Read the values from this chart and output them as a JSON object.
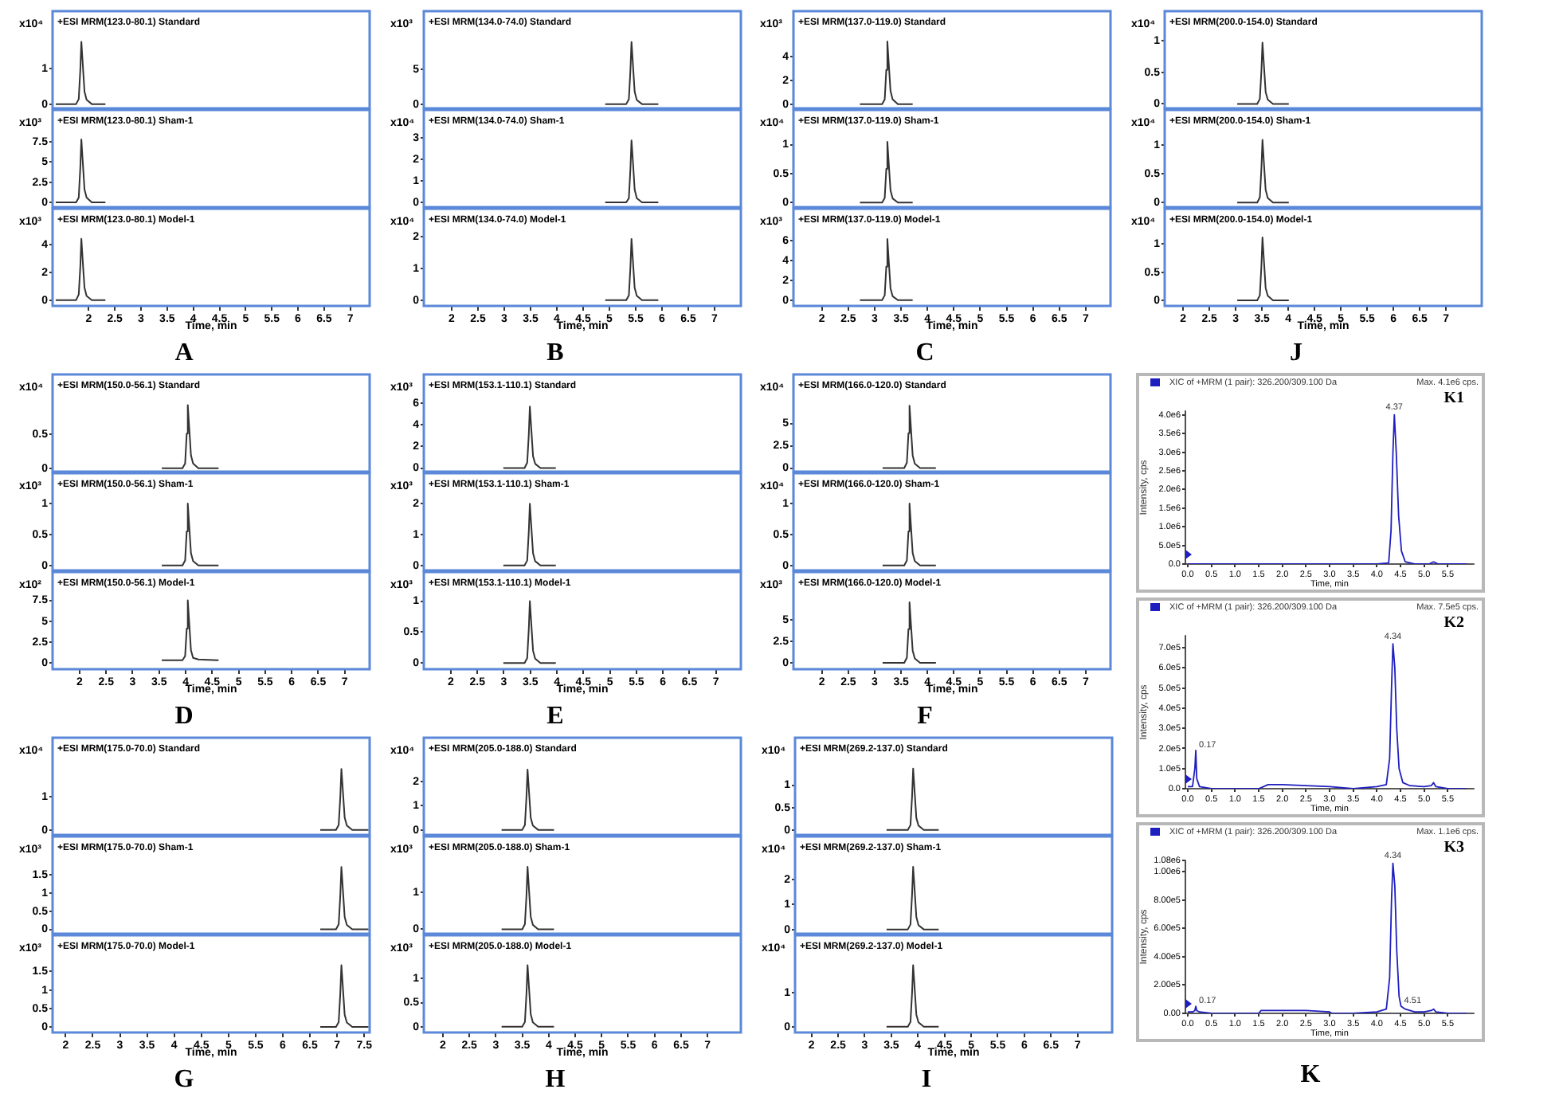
{
  "chart_data": [
    {
      "type": "line",
      "title": "+ESI MRM(123.0-80.1) Standard",
      "ylabel": "x10⁴",
      "x": [
        1.37,
        1.76,
        1.81,
        1.84,
        1.86,
        1.89,
        1.92,
        1.96,
        2.06,
        2.32
      ],
      "values": [
        0,
        0,
        0.14,
        0.96,
        1.75,
        1.05,
        0.35,
        0.12,
        0,
        0
      ],
      "color": "#333333",
      "xlim": [
        1.31,
        7.37
      ],
      "ylim": [
        -0.12,
        2.61
      ],
      "yticks": [
        0,
        1
      ],
      "tick_labels": "y"
    },
    {
      "type": "line",
      "title": "+ESI MRM(123.0-80.1) Sham-1",
      "ylabel": "x10³",
      "x": [
        1.37,
        1.76,
        1.81,
        1.84,
        1.86,
        1.89,
        1.92,
        1.96,
        2.06,
        2.32
      ],
      "values": [
        0,
        0,
        0.6,
        4.3,
        7.8,
        4.7,
        1.6,
        0.6,
        0,
        0
      ],
      "color": "#333333",
      "xlim": [
        1.31,
        7.37
      ],
      "ylim": [
        -0.59,
        11.45
      ],
      "yticks": [
        0,
        2.5,
        5,
        7.5
      ],
      "tick_labels": "y"
    },
    {
      "type": "line",
      "title": "+ESI MRM(123.0-80.1) Model-1",
      "ylabel": "x10³",
      "xlabel": "Time, min",
      "annotations": [
        "A"
      ],
      "x": [
        1.37,
        1.76,
        1.81,
        1.84,
        1.86,
        1.89,
        1.92,
        1.96,
        2.06,
        2.32
      ],
      "values": [
        0,
        0,
        0.4,
        2.4,
        4.4,
        2.6,
        0.9,
        0.3,
        0,
        0
      ],
      "color": "#333333",
      "xlim": [
        1.31,
        7.37
      ],
      "ylim": [
        -0.42,
        6.57
      ],
      "xticks": [
        2,
        2.5,
        3,
        3.5,
        4,
        4.5,
        5,
        5.5,
        6,
        6.5,
        7
      ],
      "yticks": [
        0,
        2,
        4
      ]
    },
    {
      "type": "line",
      "title": "+ESI MRM(134.0-74.0) Standard",
      "ylabel": "x10³",
      "x": [
        4.92,
        5.32,
        5.37,
        5.4,
        5.42,
        5.45,
        5.48,
        5.52,
        5.62,
        5.93
      ],
      "values": [
        0,
        0,
        0.7,
        5,
        9,
        5.4,
        1.8,
        0.6,
        0,
        0
      ],
      "color": "#333333",
      "xlim": [
        1.47,
        7.5
      ],
      "ylim": [
        -0.62,
        13.46
      ],
      "yticks": [
        0,
        5
      ],
      "tick_labels": "y"
    },
    {
      "type": "line",
      "title": "+ESI MRM(134.0-74.0) Sham-1",
      "ylabel": "x10⁴",
      "x": [
        4.92,
        5.32,
        5.37,
        5.4,
        5.42,
        5.45,
        5.48,
        5.52,
        5.62,
        5.93
      ],
      "values": [
        0,
        0,
        0.2,
        1.6,
        2.9,
        1.8,
        0.6,
        0.2,
        0,
        0
      ],
      "color": "#333333",
      "xlim": [
        1.47,
        7.5
      ],
      "ylim": [
        -0.22,
        4.32
      ],
      "yticks": [
        0,
        1,
        2,
        3
      ],
      "tick_labels": "y"
    },
    {
      "type": "line",
      "title": "+ESI MRM(134.0-74.0) Model-1",
      "ylabel": "x10⁴",
      "xlabel": "Time, min",
      "annotations": [
        "B"
      ],
      "x": [
        4.92,
        5.32,
        5.37,
        5.4,
        5.42,
        5.45,
        5.48,
        5.52,
        5.62,
        5.93
      ],
      "values": [
        0,
        0,
        0.15,
        1.06,
        1.93,
        1.16,
        0.39,
        0.14,
        0,
        0
      ],
      "color": "#333333",
      "xlim": [
        1.47,
        7.5
      ],
      "ylim": [
        -0.18,
        2.88
      ],
      "xticks": [
        2,
        2.5,
        3,
        3.5,
        4,
        4.5,
        5,
        5.5,
        6,
        6.5,
        7
      ],
      "yticks": [
        0,
        1,
        2
      ]
    },
    {
      "type": "line",
      "title": "+ESI MRM(137.0-119.0) Standard",
      "ylabel": "x10³",
      "x": [
        2.72,
        3.14,
        3.19,
        3.22,
        3.24,
        3.27,
        3.3,
        3.34,
        3.44,
        3.72
      ],
      "values": [
        0,
        0,
        0.4,
        2.9,
        5.3,
        3.2,
        1.1,
        0.4,
        0,
        0
      ],
      "color": "#333333",
      "xlim": [
        1.46,
        7.47
      ],
      "ylim": [
        -0.36,
        7.87
      ],
      "yticks": [
        0,
        2,
        4
      ],
      "tick_labels": "y"
    },
    {
      "type": "line",
      "title": "+ESI MRM(137.0-119.0) Sham-1",
      "ylabel": "x10⁴",
      "x": [
        2.72,
        3.14,
        3.19,
        3.22,
        3.24,
        3.27,
        3.3,
        3.34,
        3.44,
        3.72
      ],
      "values": [
        0,
        0,
        0.08,
        0.58,
        1.05,
        0.63,
        0.21,
        0.07,
        0,
        0
      ],
      "color": "#333333",
      "xlim": [
        1.46,
        7.47
      ],
      "ylim": [
        -0.08,
        1.6
      ],
      "yticks": [
        0,
        0.5,
        1
      ],
      "tick_labels": "y"
    },
    {
      "type": "line",
      "title": "+ESI MRM(137.0-119.0) Model-1",
      "ylabel": "x10³",
      "xlabel": "Time, min",
      "annotations": [
        "C"
      ],
      "x": [
        2.72,
        3.14,
        3.19,
        3.22,
        3.24,
        3.27,
        3.3,
        3.34,
        3.44,
        3.72
      ],
      "values": [
        0,
        0,
        0.5,
        3.4,
        6.2,
        3.7,
        1.2,
        0.4,
        0,
        0
      ],
      "color": "#333333",
      "xlim": [
        1.46,
        7.47
      ],
      "ylim": [
        -0.58,
        9.26
      ],
      "xticks": [
        2,
        2.5,
        3,
        3.5,
        4,
        4.5,
        5,
        5.5,
        6,
        6.5,
        7
      ],
      "yticks": [
        0,
        2,
        4,
        6
      ]
    },
    {
      "type": "line",
      "title": "+ESI MRM(200.0-154.0) Standard",
      "ylabel": "x10⁴",
      "x": [
        3.03,
        3.41,
        3.46,
        3.49,
        3.51,
        3.54,
        3.57,
        3.61,
        3.71,
        4.01
      ],
      "values": [
        0,
        0,
        0.08,
        0.53,
        0.97,
        0.58,
        0.19,
        0.07,
        0,
        0
      ],
      "color": "#333333",
      "xlim": [
        1.65,
        7.68
      ],
      "ylim": [
        -0.07,
        1.47
      ],
      "yticks": [
        0,
        0.5,
        1
      ],
      "tick_labels": "y"
    },
    {
      "type": "line",
      "title": "+ESI MRM(200.0-154.0) Sham-1",
      "ylabel": "x10⁴",
      "x": [
        3.03,
        3.41,
        3.46,
        3.49,
        3.51,
        3.54,
        3.57,
        3.61,
        3.71,
        4.01
      ],
      "values": [
        0,
        0,
        0.09,
        0.6,
        1.09,
        0.65,
        0.22,
        0.08,
        0,
        0
      ],
      "color": "#333333",
      "xlim": [
        1.65,
        7.68
      ],
      "ylim": [
        -0.08,
        1.61
      ],
      "yticks": [
        0,
        0.5,
        1
      ],
      "tick_labels": "y"
    },
    {
      "type": "line",
      "title": "+ESI MRM(200.0-154.0) Model-1",
      "ylabel": "x10⁴",
      "xlabel": "Time, min",
      "annotations": [
        "J"
      ],
      "x": [
        3.03,
        3.41,
        3.46,
        3.49,
        3.51,
        3.54,
        3.57,
        3.61,
        3.71,
        4.01
      ],
      "values": [
        0,
        0,
        0.09,
        0.62,
        1.12,
        0.67,
        0.22,
        0.08,
        0,
        0
      ],
      "color": "#333333",
      "xlim": [
        1.65,
        7.68
      ],
      "ylim": [
        -0.1,
        1.63
      ],
      "xticks": [
        2,
        2.5,
        3,
        3.5,
        4,
        4.5,
        5,
        5.5,
        6,
        6.5,
        7
      ],
      "yticks": [
        0,
        0.5,
        1
      ]
    },
    {
      "type": "line",
      "title": "+ESI MRM(150.0-56.1) Standard",
      "ylabel": "x10⁴",
      "x": [
        3.55,
        3.94,
        3.99,
        4.02,
        4.04,
        4.07,
        4.1,
        4.14,
        4.24,
        4.62
      ],
      "values": [
        0,
        0,
        0.07,
        0.51,
        0.93,
        0.56,
        0.19,
        0.07,
        0,
        0
      ],
      "color": "#333333",
      "xlim": [
        1.49,
        7.47
      ],
      "ylim": [
        -0.05,
        1.38
      ],
      "yticks": [
        0,
        0.5
      ],
      "tick_labels": "y"
    },
    {
      "type": "line",
      "title": "+ESI MRM(150.0-56.1) Sham-1",
      "ylabel": "x10³",
      "x": [
        3.55,
        3.94,
        3.99,
        4.02,
        4.04,
        4.07,
        4.1,
        4.14,
        4.24,
        4.62
      ],
      "values": [
        0,
        0,
        0.08,
        0.55,
        1,
        0.6,
        0.2,
        0.07,
        0,
        0
      ],
      "color": "#333333",
      "xlim": [
        1.49,
        7.47
      ],
      "ylim": [
        -0.08,
        1.49
      ],
      "yticks": [
        0,
        0.5,
        1
      ],
      "tick_labels": "y"
    },
    {
      "type": "line",
      "title": "+ESI MRM(150.0-56.1) Model-1",
      "ylabel": "x10²",
      "xlabel": "Time, min",
      "annotations": [
        "D"
      ],
      "x": [
        3.55,
        3.94,
        3.99,
        4.02,
        4.04,
        4.07,
        4.1,
        4.14,
        4.24,
        4.62
      ],
      "values": [
        0.3,
        0.3,
        0.8,
        4.1,
        7.5,
        4.5,
        1.5,
        0.6,
        0.4,
        0.3
      ],
      "color": "#333333",
      "xlim": [
        1.49,
        7.47
      ],
      "ylim": [
        -0.77,
        10.9
      ],
      "xticks": [
        2,
        2.5,
        3,
        3.5,
        4,
        4.5,
        5,
        5.5,
        6,
        6.5,
        7
      ],
      "yticks": [
        0,
        2.5,
        5,
        7.5
      ]
    },
    {
      "type": "line",
      "title": "+ESI MRM(153.1-110.1) Standard",
      "ylabel": "x10³",
      "x": [
        2.99,
        3.39,
        3.44,
        3.47,
        3.49,
        3.52,
        3.55,
        3.59,
        3.69,
        3.98
      ],
      "values": [
        0,
        0,
        0.5,
        3.1,
        5.7,
        3.4,
        1.1,
        0.4,
        0,
        0
      ],
      "color": "#333333",
      "xlim": [
        1.49,
        7.47
      ],
      "ylim": [
        -0.33,
        8.67
      ],
      "yticks": [
        0,
        2,
        4,
        6
      ],
      "tick_labels": "y"
    },
    {
      "type": "line",
      "title": "+ESI MRM(153.1-110.1) Sham-1",
      "ylabel": "x10³",
      "x": [
        2.99,
        3.39,
        3.44,
        3.47,
        3.49,
        3.52,
        3.55,
        3.59,
        3.69,
        3.98
      ],
      "values": [
        0,
        0,
        0.16,
        1.1,
        2,
        1.2,
        0.4,
        0.14,
        0,
        0
      ],
      "color": "#333333",
      "xlim": [
        1.49,
        7.47
      ],
      "ylim": [
        -0.16,
        2.99
      ],
      "yticks": [
        0,
        1,
        2
      ],
      "tick_labels": "y"
    },
    {
      "type": "line",
      "title": "+ESI MRM(153.1-110.1) Model-1",
      "ylabel": "x10³",
      "xlabel": "Time, min",
      "annotations": [
        "E"
      ],
      "x": [
        2.99,
        3.39,
        3.44,
        3.47,
        3.49,
        3.52,
        3.55,
        3.59,
        3.69,
        3.98
      ],
      "values": [
        0,
        0,
        0.08,
        0.55,
        1,
        0.6,
        0.2,
        0.07,
        0,
        0
      ],
      "color": "#333333",
      "xlim": [
        1.49,
        7.47
      ],
      "ylim": [
        -0.1,
        1.47
      ],
      "xticks": [
        2,
        2.5,
        3,
        3.5,
        4,
        4.5,
        5,
        5.5,
        6,
        6.5,
        7
      ],
      "yticks": [
        0,
        0.5,
        1
      ]
    },
    {
      "type": "line",
      "title": "+ESI MRM(166.0-120.0) Standard",
      "ylabel": "x10⁴",
      "x": [
        3.15,
        3.56,
        3.61,
        3.64,
        3.66,
        3.69,
        3.72,
        3.76,
        3.86,
        4.16
      ],
      "values": [
        0,
        0,
        0.6,
        3.9,
        7,
        4.2,
        1.4,
        0.5,
        0,
        0
      ],
      "color": "#333333",
      "xlim": [
        1.46,
        7.47
      ],
      "ylim": [
        -0.4,
        10.5
      ],
      "yticks": [
        0,
        2.5,
        5
      ],
      "tick_labels": "y"
    },
    {
      "type": "line",
      "title": "+ESI MRM(166.0-120.0) Sham-1",
      "ylabel": "x10⁴",
      "x": [
        3.15,
        3.56,
        3.61,
        3.64,
        3.66,
        3.69,
        3.72,
        3.76,
        3.86,
        4.16
      ],
      "values": [
        0,
        0,
        0.08,
        0.55,
        1,
        0.6,
        0.2,
        0.07,
        0,
        0
      ],
      "color": "#333333",
      "xlim": [
        1.46,
        7.47
      ],
      "ylim": [
        -0.08,
        1.49
      ],
      "yticks": [
        0,
        0.5,
        1
      ],
      "tick_labels": "y"
    },
    {
      "type": "line",
      "title": "+ESI MRM(166.0-120.0) Model-1",
      "ylabel": "x10³",
      "xlabel": "Time, min",
      "annotations": [
        "F"
      ],
      "x": [
        3.15,
        3.56,
        3.61,
        3.64,
        3.66,
        3.69,
        3.72,
        3.76,
        3.86,
        4.16
      ],
      "values": [
        0,
        0,
        0.6,
        3.9,
        7,
        4.2,
        1.4,
        0.5,
        0,
        0
      ],
      "color": "#333333",
      "xlim": [
        1.46,
        7.47
      ],
      "ylim": [
        -0.74,
        10.5
      ],
      "xticks": [
        2,
        2.5,
        3,
        3.5,
        4,
        4.5,
        5,
        5.5,
        6,
        6.5,
        7
      ],
      "yticks": [
        0,
        2.5,
        5
      ]
    },
    {
      "type": "line",
      "title": "+ESI MRM(175.0-70.0) Standard",
      "ylabel": "x10⁴",
      "x": [
        6.69,
        6.98,
        7.03,
        7.06,
        7.08,
        7.11,
        7.14,
        7.18,
        7.28,
        7.58
      ],
      "values": [
        0,
        0,
        0.15,
        1,
        1.83,
        1.1,
        0.37,
        0.13,
        0,
        0
      ],
      "color": "#333333",
      "xlim": [
        1.76,
        7.6
      ],
      "ylim": [
        -0.15,
        2.77
      ],
      "yticks": [
        0,
        1
      ],
      "tick_labels": "y"
    },
    {
      "type": "line",
      "title": "+ESI MRM(175.0-70.0) Sham-1",
      "ylabel": "x10³",
      "x": [
        6.69,
        6.98,
        7.03,
        7.06,
        7.08,
        7.11,
        7.14,
        7.18,
        7.28,
        7.58
      ],
      "values": [
        0,
        0,
        0.14,
        0.95,
        1.72,
        1.03,
        0.34,
        0.12,
        0,
        0
      ],
      "color": "#333333",
      "xlim": [
        1.76,
        7.6
      ],
      "ylim": [
        -0.12,
        2.56
      ],
      "yticks": [
        0,
        0.5,
        1,
        1.5
      ],
      "tick_labels": "y"
    },
    {
      "type": "line",
      "title": "+ESI MRM(175.0-70.0) Model-1",
      "ylabel": "x10³",
      "xlabel": "Time, min",
      "annotations": [
        "G"
      ],
      "x": [
        6.69,
        6.98,
        7.03,
        7.06,
        7.08,
        7.11,
        7.14,
        7.18,
        7.28,
        7.58
      ],
      "values": [
        0,
        0,
        0.13,
        0.92,
        1.67,
        1,
        0.33,
        0.12,
        0,
        0
      ],
      "color": "#333333",
      "xlim": [
        1.76,
        7.6
      ],
      "ylim": [
        -0.15,
        2.48
      ],
      "xticks": [
        2,
        2.5,
        3,
        3.5,
        4,
        4.5,
        5,
        5.5,
        6,
        6.5,
        7,
        7.5
      ],
      "yticks": [
        0,
        0.5,
        1,
        1.5
      ]
    },
    {
      "type": "line",
      "title": "+ESI MRM(205.0-188.0) Standard",
      "ylabel": "x10⁴",
      "x": [
        3.11,
        3.5,
        3.55,
        3.58,
        3.6,
        3.63,
        3.66,
        3.7,
        3.8,
        4.1
      ],
      "values": [
        0,
        0,
        0.2,
        1.4,
        2.5,
        1.5,
        0.5,
        0.18,
        0,
        0
      ],
      "color": "#333333",
      "xlim": [
        1.64,
        7.63
      ],
      "ylim": [
        -0.21,
        3.82
      ],
      "yticks": [
        0,
        1,
        2
      ],
      "tick_labels": "y"
    },
    {
      "type": "line",
      "title": "+ESI MRM(205.0-188.0) Sham-1",
      "ylabel": "x10³",
      "x": [
        3.11,
        3.5,
        3.55,
        3.58,
        3.6,
        3.63,
        3.66,
        3.7,
        3.8,
        4.1
      ],
      "values": [
        0,
        0,
        0.14,
        0.93,
        1.69,
        1.01,
        0.34,
        0.12,
        0,
        0
      ],
      "color": "#333333",
      "xlim": [
        1.64,
        7.63
      ],
      "ylim": [
        -0.12,
        2.51
      ],
      "yticks": [
        0,
        1
      ],
      "tick_labels": "y"
    },
    {
      "type": "line",
      "title": "+ESI MRM(205.0-188.0) Model-1",
      "ylabel": "x10³",
      "xlabel": "Time, min",
      "annotations": [
        "H"
      ],
      "x": [
        3.11,
        3.5,
        3.55,
        3.58,
        3.6,
        3.63,
        3.66,
        3.7,
        3.8,
        4.1
      ],
      "values": [
        0,
        0,
        0.1,
        0.7,
        1.28,
        0.77,
        0.26,
        0.09,
        0,
        0
      ],
      "color": "#333333",
      "xlim": [
        1.64,
        7.63
      ],
      "ylim": [
        -0.12,
        1.9
      ],
      "xticks": [
        2,
        2.5,
        3,
        3.5,
        4,
        4.5,
        5,
        5.5,
        6,
        6.5,
        7
      ],
      "yticks": [
        0,
        0.5,
        1
      ]
    },
    {
      "type": "line",
      "title": "+ESI MRM(269.2-137.0) Standard",
      "ylabel": "x10⁴",
      "x": [
        3.41,
        3.81,
        3.86,
        3.89,
        3.91,
        3.94,
        3.97,
        4.01,
        4.11,
        4.39
      ],
      "values": [
        0,
        0,
        0.11,
        0.75,
        1.37,
        0.82,
        0.27,
        0.1,
        0,
        0
      ],
      "color": "#333333",
      "xlim": [
        1.69,
        7.65
      ],
      "ylim": [
        -0.11,
        2.06
      ],
      "yticks": [
        0,
        0.5,
        1
      ],
      "tick_labels": "y"
    },
    {
      "type": "line",
      "title": "+ESI MRM(269.2-137.0) Sham-1",
      "ylabel": "x10⁴",
      "x": [
        3.41,
        3.81,
        3.86,
        3.89,
        3.91,
        3.94,
        3.97,
        4.01,
        4.11,
        4.39
      ],
      "values": [
        0,
        0,
        0.2,
        1.4,
        2.5,
        1.5,
        0.5,
        0.17,
        0,
        0
      ],
      "color": "#333333",
      "xlim": [
        1.69,
        7.65
      ],
      "ylim": [
        -0.17,
        3.71
      ],
      "yticks": [
        0,
        1,
        2
      ],
      "tick_labels": "y"
    },
    {
      "type": "line",
      "title": "+ESI MRM(269.2-137.0) Model-1",
      "ylabel": "x10⁴",
      "xlabel": "Time, min",
      "annotations": [
        "I"
      ],
      "x": [
        3.41,
        3.81,
        3.86,
        3.89,
        3.91,
        3.94,
        3.97,
        4.01,
        4.11,
        4.39
      ],
      "values": [
        0,
        0,
        0.14,
        1,
        1.81,
        1.09,
        0.36,
        0.13,
        0,
        0
      ],
      "color": "#333333",
      "xlim": [
        1.69,
        7.65
      ],
      "ylim": [
        -0.17,
        2.69
      ],
      "xticks": [
        2,
        2.5,
        3,
        3.5,
        4,
        4.5,
        5,
        5.5,
        6,
        6.5,
        7
      ],
      "yticks": [
        0,
        1
      ]
    },
    {
      "type": "line",
      "xlabel": "Time, min",
      "ylabel": "Intensity, cps",
      "legend": "top left",
      "annotations": [
        "Max. 4.1e6 cps.",
        "K1",
        {
          "text": "4.37",
          "x": 4.37,
          "y": 4000000
        }
      ],
      "x": [
        0,
        0.5,
        1,
        1.5,
        2,
        2.5,
        3,
        3.5,
        4,
        4.25,
        4.3,
        4.34,
        4.37,
        4.41,
        4.46,
        4.52,
        4.6,
        4.8,
        5.1,
        5.2,
        5.3,
        5.9
      ],
      "series": [
        {
          "name": "XIC of +MRM (1 pair): 326.200/309.100 Da",
          "color": "#1f1fbf",
          "values": [
            0,
            0,
            0,
            0,
            0,
            0,
            0,
            0,
            0,
            30000,
            900000,
            3000000,
            4000000,
            3000000,
            1300000,
            350000,
            60000,
            0,
            0,
            60000,
            0,
            0
          ]
        }
      ],
      "xlim": [
        -0.05,
        6.05
      ],
      "ylim": [
        0,
        4100000
      ],
      "xticks": [
        {
          "value": 0,
          "label": "0.0"
        },
        0.5,
        {
          "value": 1,
          "label": "1.0"
        },
        1.5,
        {
          "value": 2,
          "label": "2.0"
        },
        2.5,
        {
          "value": 3,
          "label": "3.0"
        },
        3.5,
        {
          "value": 4,
          "label": "4.0"
        },
        4.5,
        {
          "value": 5,
          "label": "5.0"
        },
        5.5
      ],
      "yticks": [
        {
          "value": 0,
          "label": "0.0"
        },
        {
          "value": 500000,
          "label": "5.0e5"
        },
        {
          "value": 1000000,
          "label": "1.0e6"
        },
        {
          "value": 1500000,
          "label": "1.5e6"
        },
        {
          "value": 2000000,
          "label": "2.0e6"
        },
        {
          "value": 2500000,
          "label": "2.5e6"
        },
        {
          "value": 3000000,
          "label": "3.0e6"
        },
        {
          "value": 3500000,
          "label": "3.5e6"
        },
        {
          "value": 4000000,
          "label": "4.0e6"
        }
      ]
    },
    {
      "type": "line",
      "xlabel": "Time, min",
      "ylabel": "Intensity, cps",
      "legend": "top left",
      "annotations": [
        "Max. 7.5e5 cps.",
        "K2",
        {
          "text": "4.34",
          "x": 4.34,
          "y": 720000
        },
        {
          "text": "0.17",
          "x": 0.17,
          "y": 190000
        }
      ],
      "x": [
        0,
        0.1,
        0.15,
        0.17,
        0.19,
        0.25,
        0.5,
        1,
        1.5,
        1.7,
        2,
        2.5,
        3,
        3.5,
        4,
        4.2,
        4.27,
        4.31,
        4.34,
        4.38,
        4.42,
        4.47,
        4.55,
        4.7,
        5,
        5.15,
        5.2,
        5.25,
        5.5,
        5.9
      ],
      "series": [
        {
          "name": "XIC of +MRM (1 pair): 326.200/309.100 Da",
          "color": "#1f1fbf",
          "values": [
            10000,
            10000,
            100000,
            190000,
            50000,
            10000,
            0,
            0,
            0,
            20000,
            20000,
            15000,
            10000,
            0,
            10000,
            20000,
            150000,
            500000,
            720000,
            600000,
            300000,
            100000,
            30000,
            15000,
            10000,
            15000,
            30000,
            10000,
            0,
            0
          ]
        }
      ],
      "xlim": [
        -0.05,
        6.05
      ],
      "ylim": [
        0,
        760000
      ],
      "xticks": [
        {
          "value": 0,
          "label": "0.0"
        },
        0.5,
        {
          "value": 1,
          "label": "1.0"
        },
        1.5,
        {
          "value": 2,
          "label": "2.0"
        },
        2.5,
        {
          "value": 3,
          "label": "3.0"
        },
        3.5,
        {
          "value": 4,
          "label": "4.0"
        },
        4.5,
        {
          "value": 5,
          "label": "5.0"
        },
        5.5
      ],
      "yticks": [
        {
          "value": 0,
          "label": "0.0"
        },
        {
          "value": 100000,
          "label": "1.0e5"
        },
        {
          "value": 200000,
          "label": "2.0e5"
        },
        {
          "value": 300000,
          "label": "3.0e5"
        },
        {
          "value": 400000,
          "label": "4.0e5"
        },
        {
          "value": 500000,
          "label": "5.0e5"
        },
        {
          "value": 600000,
          "label": "6.0e5"
        },
        {
          "value": 700000,
          "label": "7.0e5"
        }
      ]
    },
    {
      "type": "line",
      "xlabel": "Time, min",
      "ylabel": "Intensity, cps",
      "legend": "top left",
      "annotations": [
        "Max. 1.1e6 cps.",
        "K3",
        "K",
        {
          "text": "4.34",
          "x": 4.34,
          "y": 1060000
        },
        {
          "text": "0.17",
          "x": 0.17,
          "y": 50000
        },
        {
          "text": "4.51",
          "x": 4.51,
          "y": 50000
        }
      ],
      "x": [
        0,
        0.1,
        0.15,
        0.17,
        0.19,
        0.25,
        0.5,
        1,
        1.5,
        1.55,
        2,
        2.5,
        3,
        3.05,
        3.5,
        4,
        4.2,
        4.27,
        4.31,
        4.34,
        4.38,
        4.42,
        4.47,
        4.51,
        4.6,
        4.8,
        5,
        5.15,
        5.2,
        5.25,
        5.5,
        5.9
      ],
      "series": [
        {
          "name": "XIC of +MRM (1 pair): 326.200/309.100 Da",
          "color": "#1f1fbf",
          "values": [
            10000,
            10000,
            20000,
            50000,
            20000,
            10000,
            0,
            0,
            0,
            20000,
            20000,
            20000,
            10000,
            0,
            0,
            10000,
            30000,
            250000,
            800000,
            1060000,
            900000,
            450000,
            120000,
            50000,
            30000,
            10000,
            10000,
            20000,
            30000,
            10000,
            0,
            0
          ]
        }
      ],
      "xlim": [
        -0.05,
        6.05
      ],
      "ylim": [
        0,
        1080000
      ],
      "xticks": [
        {
          "value": 0,
          "label": "0.0"
        },
        0.5,
        {
          "value": 1,
          "label": "1.0"
        },
        1.5,
        {
          "value": 2,
          "label": "2.0"
        },
        2.5,
        {
          "value": 3,
          "label": "3.0"
        },
        3.5,
        {
          "value": 4,
          "label": "4.0"
        },
        4.5,
        {
          "value": 5,
          "label": "5.0"
        },
        5.5
      ],
      "yticks": [
        {
          "value": 0,
          "label": "0.00"
        },
        {
          "value": 200000,
          "label": "2.00e5"
        },
        {
          "value": 400000,
          "label": "4.00e5"
        },
        {
          "value": 600000,
          "label": "6.00e5"
        },
        {
          "value": 800000,
          "label": "8.00e5"
        },
        {
          "value": 1000000,
          "label": "1.00e6"
        },
        {
          "value": 1080000,
          "label": "1.08e6"
        }
      ]
    }
  ]
}
